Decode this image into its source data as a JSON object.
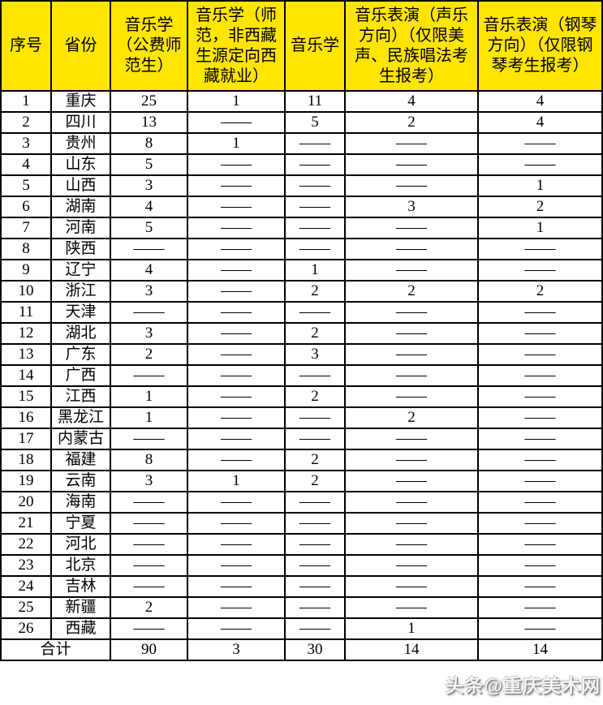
{
  "colors": {
    "header_bg": "#ffe500",
    "border": "#000000",
    "text": "#000000"
  },
  "table": {
    "columns": [
      "序号",
      "省份",
      "音乐学（公费师范生）",
      "音乐学（师范，非西藏生源定向西藏就业）",
      "音乐学",
      "音乐表演（声乐方向）（仅限美声、民族唱法考生报考）",
      "音乐表演（钢琴方向）（仅限钢琴考生报考）"
    ],
    "rows": [
      [
        "1",
        "重庆",
        "25",
        "1",
        "11",
        "4",
        "4"
      ],
      [
        "2",
        "四川",
        "13",
        "——",
        "5",
        "2",
        "4"
      ],
      [
        "3",
        "贵州",
        "8",
        "1",
        "——",
        "——",
        "——"
      ],
      [
        "4",
        "山东",
        "5",
        "——",
        "——",
        "——",
        "——"
      ],
      [
        "5",
        "山西",
        "3",
        "——",
        "——",
        "——",
        "1"
      ],
      [
        "6",
        "湖南",
        "4",
        "——",
        "——",
        "3",
        "2"
      ],
      [
        "7",
        "河南",
        "5",
        "——",
        "——",
        "——",
        "1"
      ],
      [
        "8",
        "陕西",
        "——",
        "——",
        "——",
        "——",
        "——"
      ],
      [
        "9",
        "辽宁",
        "4",
        "——",
        "1",
        "——",
        "——"
      ],
      [
        "10",
        "浙江",
        "3",
        "——",
        "2",
        "2",
        "2"
      ],
      [
        "11",
        "天津",
        "——",
        "——",
        "——",
        "——",
        "——"
      ],
      [
        "12",
        "湖北",
        "3",
        "——",
        "2",
        "——",
        "——"
      ],
      [
        "13",
        "广东",
        "2",
        "——",
        "3",
        "——",
        "——"
      ],
      [
        "14",
        "广西",
        "——",
        "——",
        "——",
        "——",
        "——"
      ],
      [
        "15",
        "江西",
        "1",
        "——",
        "2",
        "——",
        "——"
      ],
      [
        "16",
        "黑龙江",
        "1",
        "——",
        "——",
        "2",
        "——"
      ],
      [
        "17",
        "内蒙古",
        "——",
        "——",
        "——",
        "——",
        "——"
      ],
      [
        "18",
        "福建",
        "8",
        "——",
        "2",
        "——",
        "——"
      ],
      [
        "19",
        "云南",
        "3",
        "1",
        "2",
        "——",
        "——"
      ],
      [
        "20",
        "海南",
        "——",
        "——",
        "——",
        "——",
        "——"
      ],
      [
        "21",
        "宁夏",
        "——",
        "——",
        "——",
        "——",
        "——"
      ],
      [
        "22",
        "河北",
        "——",
        "——",
        "——",
        "——",
        "——"
      ],
      [
        "23",
        "北京",
        "——",
        "——",
        "——",
        "——",
        "——"
      ],
      [
        "24",
        "吉林",
        "——",
        "——",
        "——",
        "——",
        "——"
      ],
      [
        "25",
        "新疆",
        "2",
        "——",
        "——",
        "——",
        "——"
      ],
      [
        "26",
        "西藏",
        "——",
        "——",
        "——",
        "1",
        "——"
      ]
    ],
    "total": {
      "label": "合计",
      "values": [
        "90",
        "3",
        "30",
        "14",
        "14"
      ]
    }
  },
  "watermark": "头条@重庆美术网"
}
